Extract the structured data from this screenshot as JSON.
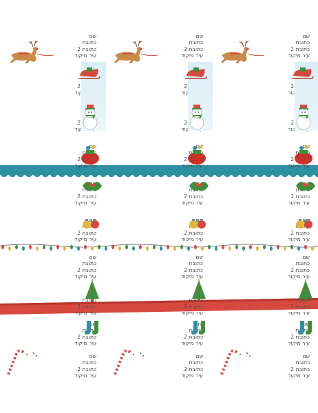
{
  "labels": {
    "name": "שם",
    "address": "כתובת",
    "address2": "כתובת 2",
    "city_zip": "עיר מיקוד"
  },
  "colors": {
    "teal": "#2e8fa0",
    "red": "#d7493f",
    "green": "#3f8f3a"
  }
}
